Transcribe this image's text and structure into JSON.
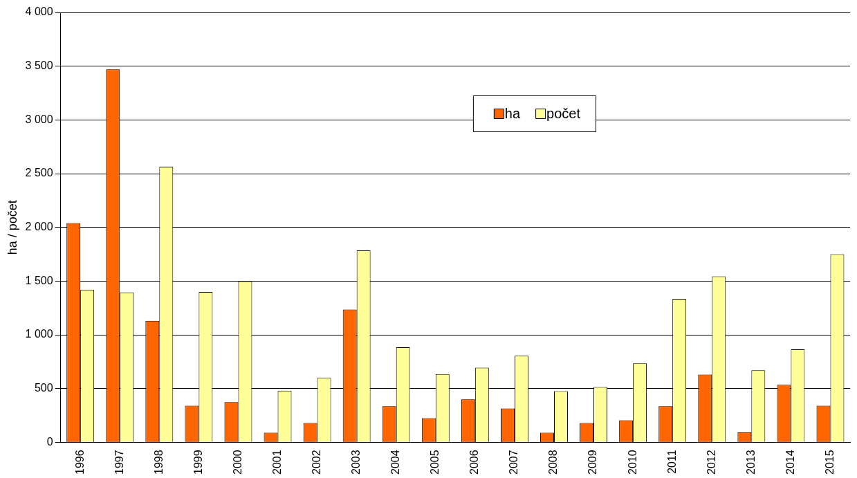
{
  "chart_data": {
    "type": "bar",
    "ylabel": "ha / počet",
    "categories": [
      "1996",
      "1997",
      "1998",
      "1999",
      "2000",
      "2001",
      "2002",
      "2003",
      "2004",
      "2005",
      "2006",
      "2007",
      "2008",
      "2009",
      "2010",
      "2011",
      "2012",
      "2013",
      "2014",
      "2015"
    ],
    "series": [
      {
        "name": "ha",
        "color": "#ff6600",
        "values": [
          2040,
          3470,
          1130,
          340,
          375,
          90,
          180,
          1235,
          335,
          225,
          400,
          315,
          90,
          180,
          205,
          335,
          630,
          95,
          535,
          340
        ]
      },
      {
        "name": "počet",
        "color": "#ffff99",
        "values": [
          1420,
          1395,
          2565,
          1400,
          1500,
          480,
          600,
          1785,
          885,
          635,
          695,
          805,
          475,
          515,
          735,
          1335,
          1545,
          670,
          865,
          1750
        ]
      }
    ],
    "ylim": [
      0,
      4000
    ],
    "yticks": [
      0,
      500,
      {
        "value": 1000,
        "label": "1 000"
      },
      {
        "value": 1500,
        "label": "1 500"
      },
      {
        "value": 2000,
        "label": "2 000"
      },
      {
        "value": 2500,
        "label": "2 500"
      },
      {
        "value": 3000,
        "label": "3 000"
      },
      {
        "value": 3500,
        "label": "3 500"
      },
      {
        "value": 4000,
        "label": "4 000"
      }
    ],
    "grid": "y",
    "legend": "top"
  }
}
